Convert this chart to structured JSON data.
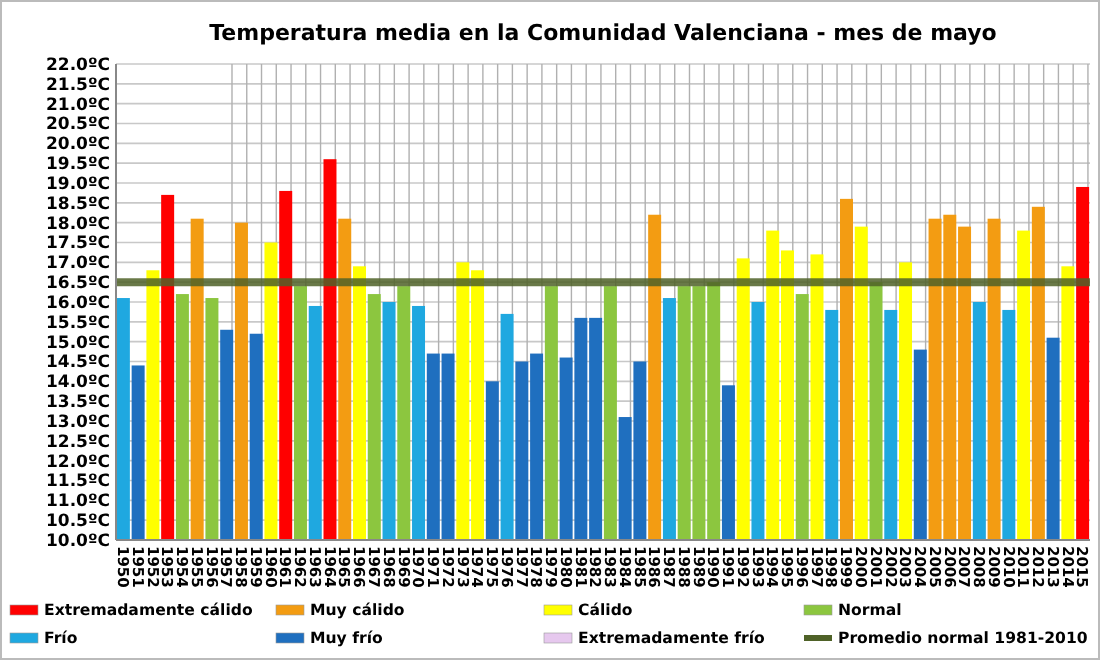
{
  "chart_data": {
    "type": "bar",
    "title": "Temperatura media en la Comunidad Valenciana - mes de mayo",
    "categories": [
      "1950",
      "1951",
      "1952",
      "1953",
      "1954",
      "1955",
      "1956",
      "1957",
      "1958",
      "1959",
      "1960",
      "1961",
      "1962",
      "1963",
      "1964",
      "1965",
      "1966",
      "1967",
      "1968",
      "1969",
      "1970",
      "1971",
      "1972",
      "1973",
      "1974",
      "1975",
      "1976",
      "1977",
      "1978",
      "1979",
      "1980",
      "1981",
      "1982",
      "1983",
      "1984",
      "1985",
      "1986",
      "1987",
      "1988",
      "1989",
      "1990",
      "1991",
      "1992",
      "1993",
      "1994",
      "1995",
      "1996",
      "1997",
      "1998",
      "1999",
      "2000",
      "2001",
      "2002",
      "2003",
      "2004",
      "2005",
      "2006",
      "2007",
      "2008",
      "2009",
      "2010",
      "2011",
      "2012",
      "2013",
      "2014",
      "2015"
    ],
    "series": [
      {
        "name": "Extremadamente cálido",
        "color": "#ff0000",
        "values": [
          null,
          null,
          null,
          18.7,
          null,
          null,
          null,
          null,
          null,
          null,
          null,
          18.8,
          null,
          null,
          19.6,
          null,
          null,
          null,
          null,
          null,
          null,
          null,
          null,
          null,
          null,
          null,
          null,
          null,
          null,
          null,
          null,
          null,
          null,
          null,
          null,
          null,
          null,
          null,
          null,
          null,
          null,
          null,
          null,
          null,
          null,
          null,
          null,
          null,
          null,
          null,
          null,
          null,
          null,
          null,
          null,
          null,
          null,
          null,
          null,
          null,
          null,
          null,
          null,
          null,
          null,
          18.9
        ]
      },
      {
        "name": "Muy cálido",
        "color": "#f39c12",
        "values": [
          null,
          null,
          null,
          null,
          null,
          18.1,
          null,
          null,
          18.0,
          null,
          null,
          null,
          null,
          null,
          null,
          18.1,
          null,
          null,
          null,
          null,
          null,
          null,
          null,
          null,
          null,
          null,
          null,
          null,
          null,
          null,
          null,
          null,
          null,
          null,
          null,
          null,
          18.2,
          null,
          null,
          null,
          null,
          null,
          null,
          null,
          null,
          null,
          null,
          null,
          null,
          18.6,
          null,
          null,
          null,
          null,
          null,
          18.1,
          18.2,
          17.9,
          null,
          18.1,
          null,
          null,
          18.4,
          null,
          null,
          null
        ]
      },
      {
        "name": "Cálido",
        "color": "#ffff00",
        "values": [
          null,
          null,
          16.8,
          null,
          null,
          null,
          null,
          null,
          null,
          null,
          17.5,
          null,
          null,
          null,
          null,
          null,
          16.9,
          null,
          null,
          null,
          null,
          null,
          null,
          17.0,
          16.8,
          null,
          null,
          null,
          null,
          null,
          null,
          null,
          null,
          null,
          null,
          null,
          null,
          null,
          null,
          null,
          null,
          null,
          17.1,
          null,
          17.8,
          17.3,
          null,
          17.2,
          null,
          null,
          17.9,
          null,
          null,
          17.0,
          null,
          null,
          null,
          null,
          null,
          null,
          null,
          17.8,
          null,
          null,
          16.9,
          null
        ]
      },
      {
        "name": "Normal",
        "color": "#8cc63f",
        "values": [
          null,
          null,
          null,
          null,
          16.2,
          null,
          16.1,
          null,
          null,
          null,
          null,
          null,
          16.4,
          null,
          null,
          null,
          null,
          16.2,
          null,
          16.4,
          null,
          null,
          null,
          null,
          null,
          null,
          null,
          null,
          null,
          16.4,
          null,
          null,
          null,
          16.4,
          null,
          null,
          null,
          null,
          16.4,
          16.4,
          16.5,
          null,
          null,
          null,
          null,
          null,
          16.2,
          null,
          null,
          null,
          null,
          16.5,
          null,
          null,
          null,
          null,
          null,
          null,
          null,
          null,
          null,
          null,
          null,
          null,
          null,
          null
        ]
      },
      {
        "name": "Frío",
        "color": "#1fa8e0",
        "values": [
          16.1,
          null,
          null,
          null,
          null,
          null,
          null,
          null,
          null,
          null,
          null,
          null,
          null,
          15.9,
          null,
          null,
          null,
          null,
          16.0,
          null,
          15.9,
          null,
          null,
          null,
          null,
          null,
          15.7,
          null,
          null,
          null,
          null,
          null,
          null,
          null,
          null,
          null,
          null,
          16.1,
          null,
          null,
          null,
          null,
          null,
          16.0,
          null,
          null,
          null,
          null,
          15.8,
          null,
          null,
          null,
          15.8,
          null,
          null,
          null,
          null,
          null,
          16.0,
          null,
          15.8,
          null,
          null,
          null,
          null,
          null
        ]
      },
      {
        "name": "Muy frío",
        "color": "#1f6fbf",
        "values": [
          null,
          14.4,
          null,
          null,
          null,
          null,
          null,
          15.3,
          null,
          15.2,
          null,
          null,
          null,
          null,
          null,
          null,
          null,
          null,
          null,
          null,
          null,
          14.7,
          14.7,
          null,
          null,
          14.0,
          null,
          14.5,
          14.7,
          null,
          14.6,
          15.6,
          15.6,
          null,
          13.1,
          14.5,
          null,
          null,
          null,
          null,
          null,
          13.9,
          null,
          null,
          null,
          null,
          null,
          null,
          null,
          null,
          null,
          null,
          null,
          null,
          14.8,
          null,
          null,
          null,
          null,
          null,
          null,
          null,
          null,
          15.1,
          null,
          null
        ]
      },
      {
        "name": "Extremadamente frío",
        "color": "#e6c8ee",
        "values": [
          null,
          null,
          null,
          null,
          null,
          null,
          null,
          null,
          null,
          null,
          null,
          null,
          null,
          null,
          null,
          null,
          null,
          null,
          null,
          null,
          null,
          null,
          null,
          null,
          null,
          null,
          null,
          null,
          null,
          null,
          null,
          null,
          null,
          null,
          null,
          null,
          null,
          null,
          null,
          null,
          null,
          null,
          null,
          null,
          null,
          null,
          null,
          null,
          null,
          null,
          null,
          null,
          null,
          null,
          null,
          null,
          null,
          null,
          null,
          null,
          null,
          null,
          null,
          null,
          null,
          null
        ]
      }
    ],
    "ref_lines": [
      {
        "axis": "y",
        "value": 16.5,
        "label": "Promedio normal 1981-2010",
        "color": "#4f6228"
      }
    ],
    "ylim": [
      10,
      22
    ],
    "yticks": [
      {
        "value": 10,
        "label": "10.0ºC"
      },
      {
        "value": 10.5,
        "label": "10.5ºC"
      },
      {
        "value": 11,
        "label": "11.0ºC"
      },
      {
        "value": 11.5,
        "label": "11.5ºC"
      },
      {
        "value": 12,
        "label": "12.0ºC"
      },
      {
        "value": 12.5,
        "label": "12.5ºC"
      },
      {
        "value": 13,
        "label": "13.0ºC"
      },
      {
        "value": 13.5,
        "label": "13.5ºC"
      },
      {
        "value": 14,
        "label": "14.0ºC"
      },
      {
        "value": 14.5,
        "label": "14.5ºC"
      },
      {
        "value": 15,
        "label": "15.0ºC"
      },
      {
        "value": 15.5,
        "label": "15.5ºC"
      },
      {
        "value": 16,
        "label": "16.0ºC"
      },
      {
        "value": 16.5,
        "label": "16.5ºC"
      },
      {
        "value": 17,
        "label": "17.0ºC"
      },
      {
        "value": 17.5,
        "label": "17.5ºC"
      },
      {
        "value": 18,
        "label": "18.0ºC"
      },
      {
        "value": 18.5,
        "label": "18.5ºC"
      },
      {
        "value": 19,
        "label": "19.0ºC"
      },
      {
        "value": 19.5,
        "label": "19.5ºC"
      },
      {
        "value": 20,
        "label": "20.0ºC"
      },
      {
        "value": 20.5,
        "label": "20.5ºC"
      },
      {
        "value": 21,
        "label": "21.0ºC"
      },
      {
        "value": 21.5,
        "label": "21.5ºC"
      },
      {
        "value": 22,
        "label": "22.0ºC"
      }
    ],
    "grid": true,
    "legend": "bottom"
  }
}
